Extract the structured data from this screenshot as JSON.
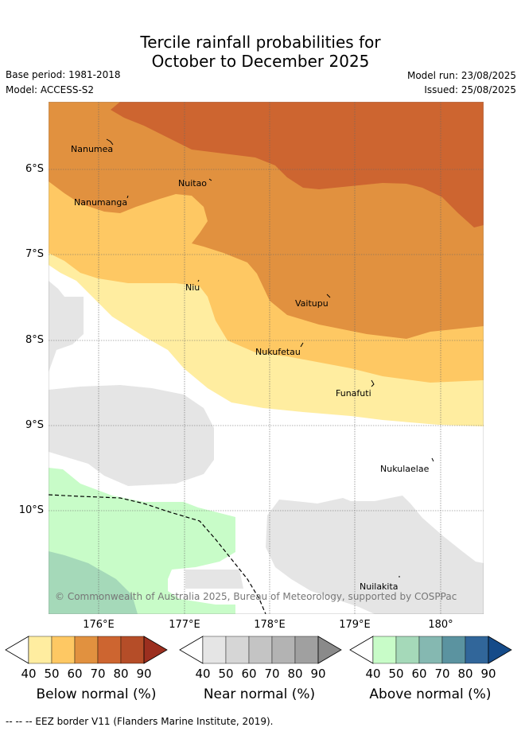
{
  "title_line1": "Tercile rainfall probabilities for",
  "title_line2": "October to December 2025",
  "base_period": "Base period: 1981-2018",
  "model": "Model: ACCESS-S2",
  "model_run": "Model run: 23/08/2025",
  "issued": "Issued: 25/08/2025",
  "lat_labels": [
    "6°S",
    "7°S",
    "8°S",
    "9°S",
    "10°S"
  ],
  "lon_labels": [
    "176°E",
    "177°E",
    "178°E",
    "179°E",
    "180°"
  ],
  "places": [
    "Nanumea",
    "Nuitao",
    "Nanumanga",
    "Niu",
    "Vaitupu",
    "Nukufetau",
    "Funafuti",
    "Nukulaelae",
    "Nuilakita"
  ],
  "copyright": "© Commonwealth of Australia 2025, Bureau of Meteorology, supported by COSPPac",
  "colorbars": [
    {
      "title": "Below normal (%)",
      "ticks": [
        "40",
        "50",
        "60",
        "70",
        "80",
        "90"
      ],
      "colors": [
        "#ffeda0",
        "#fec863",
        "#e1913f",
        "#cd6530",
        "#b54d28",
        "#9c2f1f"
      ]
    },
    {
      "title": "Near normal (%)",
      "ticks": [
        "40",
        "50",
        "60",
        "70",
        "80",
        "90"
      ],
      "colors": [
        "#e5e5e5",
        "#d6d6d6",
        "#c4c4c4",
        "#b3b3b3",
        "#a0a0a0",
        "#8a8a8a"
      ]
    },
    {
      "title": "Above normal (%)",
      "ticks": [
        "40",
        "50",
        "60",
        "70",
        "80",
        "90"
      ],
      "colors": [
        "#c8fcc8",
        "#a5d9b9",
        "#85b8b1",
        "#5b93a0",
        "#31669a",
        "#154b89"
      ]
    }
  ],
  "footer": "--  --  -- EEZ border V11 (Flanders Marine Institute, 2019)."
}
